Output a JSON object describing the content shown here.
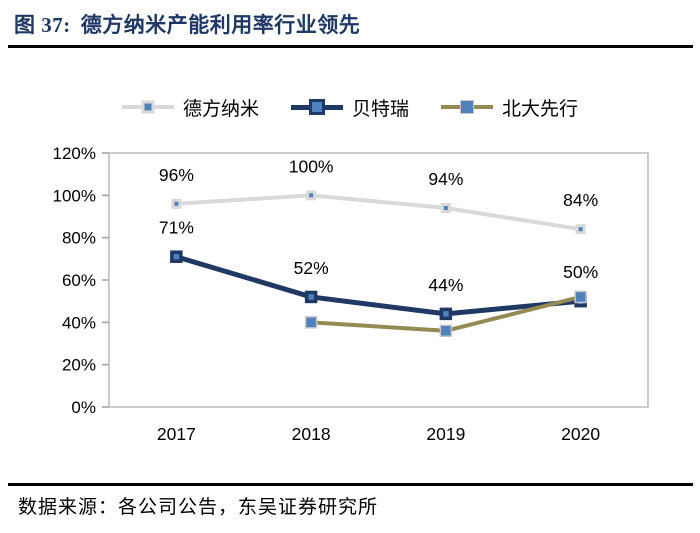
{
  "header": {
    "figure_label": "图 37:",
    "title": "德方纳米产能利用率行业领先",
    "title_color": "#1F3864",
    "divider_color": "#000000"
  },
  "footer": {
    "source": "数据来源：各公司公告，东吴证券研究所"
  },
  "chart_data": {
    "type": "line",
    "title": "德方纳米产能利用率行业领先",
    "categories": [
      "2017",
      "2018",
      "2019",
      "2020"
    ],
    "series": [
      {
        "name": "德方纳米",
        "values": [
          96,
          100,
          94,
          84
        ],
        "labels": [
          "96%",
          "100%",
          "94%",
          "84%"
        ],
        "line_color": "#D9D9D9",
        "marker_fill": "#4F81BD",
        "marker_border": "#D9D9D9",
        "line_width": 4,
        "marker_size": 7,
        "marker_stroke_width": 3
      },
      {
        "name": "贝特瑞",
        "values": [
          71,
          52,
          44,
          50
        ],
        "labels": [
          "71%",
          "52%",
          "44%",
          "50%"
        ],
        "line_color": "#1F3864",
        "marker_fill": "#4F81BD",
        "marker_border": "#1F3864",
        "line_width": 5,
        "marker_size": 9,
        "marker_stroke_width": 3.5
      },
      {
        "name": "北大先行",
        "values": [
          null,
          40,
          36,
          52
        ],
        "labels": [
          "",
          "",
          "",
          ""
        ],
        "line_color": "#948A54",
        "marker_fill": "#4F81BD",
        "marker_border": "#C6C6C6",
        "line_width": 4,
        "marker_size": 11,
        "marker_stroke_width": 1.5
      }
    ],
    "ylim": [
      0,
      120
    ],
    "ytick_step": 20,
    "ytick_labels": [
      "0%",
      "20%",
      "40%",
      "60%",
      "80%",
      "100%",
      "120%"
    ],
    "grid": false,
    "legend_position": "top",
    "plot_border_color": "#BFBFBF",
    "tick_color": "#A6A6A6",
    "label_color": "#000000",
    "data_label_color": "#000000"
  }
}
